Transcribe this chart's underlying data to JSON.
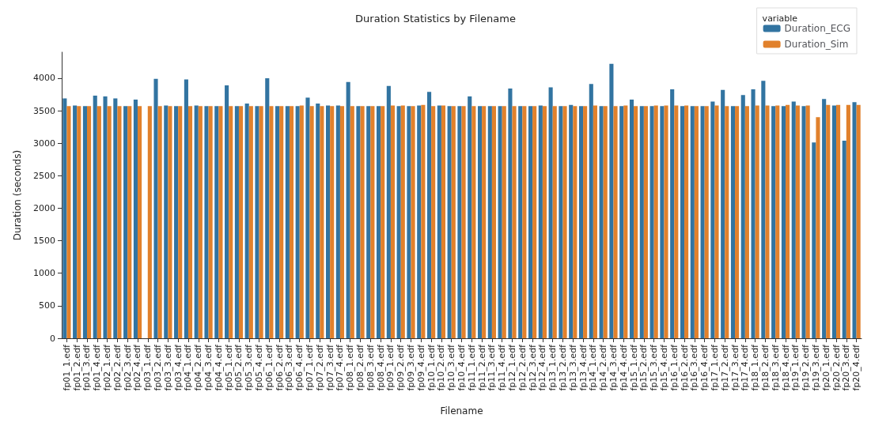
{
  "chart_data": {
    "type": "bar",
    "title": "Duration Statistics by Filename",
    "xlabel": "Filename",
    "ylabel": "Duration (seconds)",
    "legend_title": "variable",
    "categories": [
      "fp01_1.edf",
      "fp01_2.edf",
      "fp01_3.edf",
      "fp01_4.edf",
      "fp02_1.edf",
      "fp02_2.edf",
      "fp02_3.edf",
      "fp02_4.edf",
      "fp03_1.edf",
      "fp03_2.edf",
      "fp03_3.edf",
      "fp03_4.edf",
      "fp04_1.edf",
      "fp04_2.edf",
      "fp04_3.edf",
      "fp04_4.edf",
      "fp05_1.edf",
      "fp05_2.edf",
      "fp05_3.edf",
      "fp05_4.edf",
      "fp06_1.edf",
      "fp06_2.edf",
      "fp06_3.edf",
      "fp06_4.edf",
      "fp07_1.edf",
      "fp07_2.edf",
      "fp07_3.edf",
      "fp07_4.edf",
      "fp08_1.edf",
      "fp08_2.edf",
      "fp08_3.edf",
      "fp08_4.edf",
      "fp09_1.edf",
      "fp09_2.edf",
      "fp09_3.edf",
      "fp09_4.edf",
      "fp10_1.edf",
      "fp10_2.edf",
      "fp10_3.edf",
      "fp10_4.edf",
      "fp11_1.edf",
      "fp11_2.edf",
      "fp11_3.edf",
      "fp11_4.edf",
      "fp12_1.edf",
      "fp12_2.edf",
      "fp12_3.edf",
      "fp12_4.edf",
      "fp13_1.edf",
      "fp13_2.edf",
      "fp13_3.edf",
      "fp13_4.edf",
      "fp14_1.edf",
      "fp14_2.edf",
      "fp14_3.edf",
      "fp14_4.edf",
      "fp15_1.edf",
      "fp15_2.edf",
      "fp15_3.edf",
      "fp15_4.edf",
      "fp16_1.edf",
      "fp16_2.edf",
      "fp16_3.edf",
      "fp16_4.edf",
      "fp17_1.edf",
      "fp17_2.edf",
      "fp17_3.edf",
      "fp17_4.edf",
      "fp18_1.edf",
      "fp18_2.edf",
      "fp18_3.edf",
      "fp18_4.edf",
      "fp19_1.edf",
      "fp19_2.edf",
      "fp19_3.edf",
      "fp20_1.edf",
      "fp20_2.edf",
      "fp20_3.edf",
      "fp20_4.edf"
    ],
    "series": [
      {
        "name": "Duration_ECG",
        "color": "#3274a1",
        "values": [
          3690,
          3580,
          3570,
          3730,
          3720,
          3690,
          3570,
          3670,
          null,
          3990,
          3580,
          3570,
          3980,
          3580,
          3570,
          3570,
          3890,
          3570,
          3610,
          3570,
          4000,
          3570,
          3570,
          3570,
          3700,
          3610,
          3580,
          3580,
          3940,
          3570,
          3570,
          3570,
          3880,
          3570,
          3570,
          3580,
          3790,
          3580,
          3570,
          3570,
          3720,
          3570,
          3570,
          3570,
          3840,
          3570,
          3570,
          3580,
          3860,
          3570,
          3590,
          3570,
          3910,
          3570,
          4220,
          3570,
          3670,
          3570,
          3570,
          3570,
          3830,
          3570,
          3570,
          3570,
          3640,
          3820,
          3570,
          3740,
          3830,
          3960,
          3570,
          3570,
          3640,
          3570,
          3010,
          3680,
          3580,
          3040,
          3630
        ]
      },
      {
        "name": "Duration_Sim",
        "color": "#e1812c",
        "values": [
          3570,
          3570,
          3570,
          3570,
          3570,
          3570,
          3570,
          3570,
          3570,
          3570,
          3570,
          3570,
          3570,
          3570,
          3570,
          3570,
          3570,
          3570,
          3570,
          3570,
          3570,
          3570,
          3570,
          3580,
          3570,
          3570,
          3570,
          3570,
          3570,
          3570,
          3570,
          3570,
          3580,
          3580,
          3570,
          3590,
          3570,
          3580,
          3570,
          3570,
          3570,
          3570,
          3570,
          3570,
          3570,
          3570,
          3570,
          3570,
          3570,
          3570,
          3570,
          3570,
          3580,
          3570,
          3570,
          3580,
          3570,
          3570,
          3580,
          3580,
          3580,
          3580,
          3570,
          3570,
          3580,
          3570,
          3570,
          3570,
          3580,
          3580,
          3580,
          3590,
          3580,
          3580,
          3400,
          3590,
          3590,
          3590,
          3590
        ]
      }
    ],
    "ylim": [
      0,
      4400
    ],
    "yticks": [
      0,
      500,
      1000,
      1500,
      2000,
      2500,
      3000,
      3500,
      4000
    ],
    "grid": false,
    "legend": "top right"
  }
}
